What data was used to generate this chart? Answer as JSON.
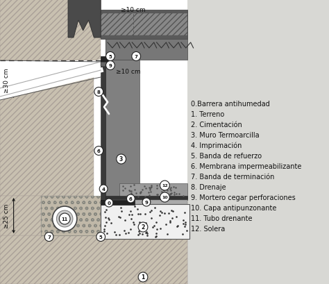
{
  "legend_items": [
    "0.Barrera antihumedad",
    "1. Terreno",
    "2. Cimentación",
    "3. Muro Termoarcilla",
    "4. Imprimación",
    "5. Banda de refuerzo",
    "6. Membrana impermeabilizante",
    "7. Banda de terminación",
    "8. Drenaje",
    "9. Mortero cegar perforaciones",
    "10. Capa antipunzonante",
    "11. Tubo drenante",
    "12. Solera"
  ],
  "bg_color": "#e8e8e8",
  "dim_30cm": "≥30 cm",
  "dim_25cm": "≥25 cm",
  "dim_10cm_top": "≥10 cm",
  "dim_10cm_mid": "≥10 cm",
  "font_size_legend": 7.0,
  "font_size_dim": 6.5
}
